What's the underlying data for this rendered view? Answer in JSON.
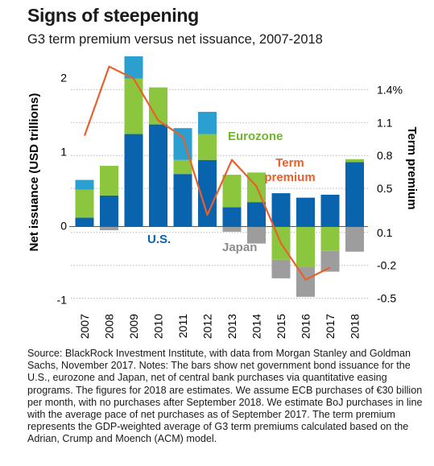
{
  "title": "Signs of steepening",
  "subtitle": "G3 term premium versus net issuance, 2007-2018",
  "note": "Source: BlackRock Investment Institute, with data from Morgan Stanley and Goldman Sachs, November 2017. Notes: The bars show net government bond issuance for the U.S., eurozone and Japan, net of central bank purchases via quantitative easing programs. The figures for 2018 are estimates. We assume ECB purchases of €30 billion per month, with no purchases after September 2018. We estimate BoJ purchases in line with the average pace of net purchases as of September 2017. The term premium represents the GDP-weighted average of G3 term premiums calculated based on the Adrian, Crump and Moench (ACM) model.",
  "chart_data": {
    "type": "bar",
    "categories": [
      "2007",
      "2008",
      "2009",
      "2010",
      "2011",
      "2012",
      "2013",
      "2014",
      "2015",
      "2016",
      "2017",
      "2018"
    ],
    "series": [
      {
        "name": "U.S.",
        "color": "#0a63ad",
        "values": [
          0.12,
          0.42,
          1.25,
          1.38,
          0.71,
          0.9,
          0.26,
          0.33,
          0.45,
          0.39,
          0.43,
          0.87
        ]
      },
      {
        "name": "Eurozone",
        "color": "#8cc63f",
        "values": [
          0.38,
          0.4,
          0.75,
          0.5,
          0.19,
          0.35,
          0.44,
          0.4,
          -0.45,
          -0.55,
          -0.33,
          0.04
        ]
      },
      {
        "name": "Japan",
        "color": "#2a9fd0",
        "values": [
          0.13,
          0.0,
          0.3,
          0.0,
          0.43,
          0.3,
          0.0,
          0.0,
          0.0,
          0.0,
          0.0,
          0.0
        ]
      },
      {
        "name": "Japan",
        "color": "#9d9d9d",
        "values": [
          0,
          -0.05,
          0,
          0,
          0,
          0,
          -0.07,
          -0.23,
          -0.25,
          -0.4,
          -0.28,
          -0.34
        ]
      }
    ],
    "line": {
      "name": "Term premium",
      "color": "#e8602c",
      "values": [
        0.98,
        1.61,
        1.5,
        1.12,
        0.97,
        0.26,
        0.76,
        0.52,
        0.0,
        -0.33,
        -0.22,
        null
      ]
    },
    "ylabel": "Net issuance (USD trillions)",
    "y2label": "Term premium",
    "ylim": [
      -1.05,
      2.3
    ],
    "yticks": [
      -1,
      0,
      1,
      2
    ],
    "y2lim": [
      -0.554,
      1.703
    ],
    "y2ticks": [
      {
        "v": -0.5,
        "label": "-0.5"
      },
      {
        "v": -0.2,
        "label": "-0.2"
      },
      {
        "v": 0.1,
        "label": "0.1"
      },
      {
        "v": 0.5,
        "label": "0.5"
      },
      {
        "v": 0.8,
        "label": "0.8"
      },
      {
        "v": 1.1,
        "label": "1.1"
      },
      {
        "v": 1.4,
        "label": "1.4%"
      }
    ],
    "annotations": {
      "us": "U.S.",
      "eurozone": "Eurozone",
      "japan": "Japan",
      "term_line1": "Term",
      "term_line2": "premium"
    }
  }
}
